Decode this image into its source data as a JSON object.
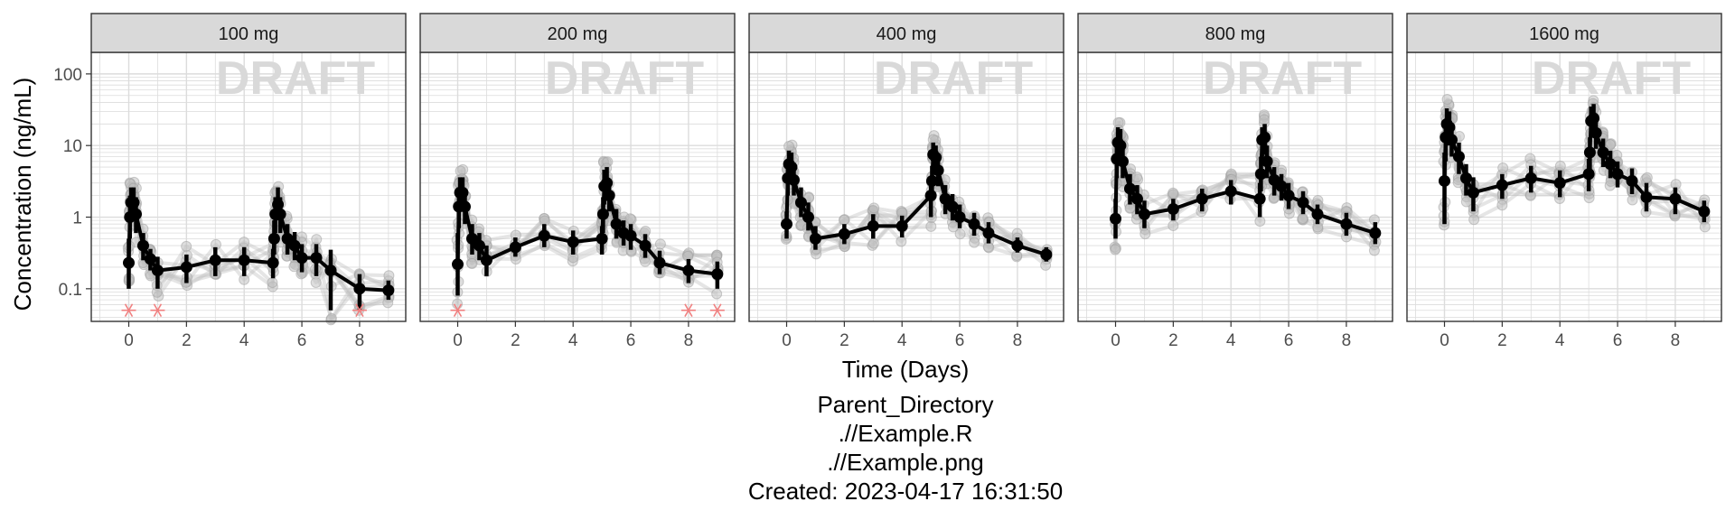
{
  "chart_data": {
    "type": "line",
    "facets": [
      "100 mg",
      "200 mg",
      "400 mg",
      "800 mg",
      "1600 mg"
    ],
    "xlabel": "Time (Days)",
    "ylabel": "Concentration (ng/mL)",
    "x_ticks": [
      "0",
      "2",
      "4",
      "6",
      "8"
    ],
    "y_ticks": [
      "0.1",
      "1",
      "10",
      "100"
    ],
    "y_scale": "log10",
    "ylim": [
      0.035,
      200
    ],
    "xlim": [
      -1.3,
      9.6
    ],
    "watermark": "DRAFT",
    "grid": true,
    "caption": [
      "Parent_Directory",
      ".//Example.R",
      ".//Example.png",
      "Created: 2023-04-17 16:31:50"
    ],
    "colors": {
      "mean_line": "#000000",
      "individual": "#bdbdbd",
      "blq_marker": "#f08080",
      "strip_bg": "#d9d9d9",
      "grid": "#dcdcdc"
    },
    "series": [
      {
        "facet": "100 mg",
        "x": [
          0,
          0.04,
          0.08,
          0.17,
          0.25,
          0.5,
          0.75,
          1,
          2,
          3,
          4,
          5,
          5.04,
          5.08,
          5.17,
          5.25,
          5.5,
          5.75,
          6,
          6.5,
          7,
          8,
          9
        ],
        "mean": [
          0.23,
          1.0,
          1.6,
          1.6,
          1.1,
          0.4,
          0.26,
          0.18,
          0.2,
          0.25,
          0.25,
          0.23,
          0.5,
          1.1,
          1.5,
          1.1,
          0.5,
          0.4,
          0.27,
          0.27,
          0.18,
          0.1,
          0.095
        ],
        "lower": [
          0.1,
          0.5,
          0.9,
          0.9,
          0.6,
          0.25,
          0.18,
          0.1,
          0.12,
          0.15,
          0.15,
          0.14,
          0.3,
          0.6,
          0.9,
          0.6,
          0.3,
          0.25,
          0.17,
          0.15,
          0.05,
          0.05,
          0.07
        ],
        "upper": [
          0.5,
          2.0,
          2.6,
          2.6,
          1.9,
          0.6,
          0.36,
          0.28,
          0.3,
          0.38,
          0.38,
          0.36,
          0.9,
          1.9,
          2.6,
          1.9,
          0.8,
          0.62,
          0.42,
          0.42,
          0.35,
          0.16,
          0.13
        ],
        "blq_x": [
          0,
          1,
          8
        ]
      },
      {
        "facet": "200 mg",
        "x": [
          0,
          0.04,
          0.08,
          0.17,
          0.25,
          0.5,
          0.75,
          1,
          2,
          3,
          4,
          5,
          5.04,
          5.08,
          5.17,
          5.25,
          5.5,
          5.75,
          6,
          6.5,
          7,
          8,
          9
        ],
        "mean": [
          0.22,
          1.4,
          2.2,
          2.2,
          1.4,
          0.5,
          0.4,
          0.25,
          0.38,
          0.55,
          0.45,
          0.5,
          1.1,
          2.7,
          3.0,
          2.0,
          0.8,
          0.6,
          0.55,
          0.4,
          0.23,
          0.18,
          0.16
        ],
        "lower": [
          0.08,
          0.7,
          1.3,
          1.3,
          0.8,
          0.3,
          0.25,
          0.15,
          0.28,
          0.38,
          0.3,
          0.3,
          0.6,
          1.5,
          1.7,
          1.2,
          0.5,
          0.4,
          0.35,
          0.27,
          0.16,
          0.12,
          0.1
        ],
        "upper": [
          0.6,
          2.6,
          3.6,
          3.6,
          2.4,
          0.8,
          0.6,
          0.4,
          0.52,
          0.8,
          0.65,
          0.75,
          1.9,
          4.6,
          5.0,
          3.4,
          1.3,
          0.9,
          0.8,
          0.58,
          0.34,
          0.26,
          0.24
        ],
        "blq_x": [
          0,
          8,
          9
        ]
      },
      {
        "facet": "400 mg",
        "x": [
          0,
          0.04,
          0.08,
          0.17,
          0.25,
          0.5,
          0.75,
          1,
          2,
          3,
          4,
          5,
          5.04,
          5.08,
          5.17,
          5.25,
          5.5,
          5.75,
          6,
          6.5,
          7,
          8,
          9
        ],
        "mean": [
          0.8,
          3.5,
          5.5,
          5.0,
          3.3,
          1.6,
          1.0,
          0.5,
          0.58,
          0.75,
          0.75,
          2.0,
          3.2,
          7.5,
          6.8,
          4.5,
          1.8,
          1.4,
          1.0,
          0.8,
          0.6,
          0.4,
          0.3
        ],
        "lower": [
          0.5,
          2.0,
          3.3,
          3.0,
          2.0,
          1.0,
          0.65,
          0.35,
          0.42,
          0.5,
          0.52,
          1.0,
          2.0,
          4.5,
          4.0,
          2.7,
          1.1,
          0.9,
          0.7,
          0.55,
          0.43,
          0.32,
          0.24
        ],
        "upper": [
          1.2,
          6.0,
          8.5,
          8.0,
          5.5,
          2.6,
          1.6,
          0.75,
          0.8,
          1.1,
          1.05,
          3.2,
          5.2,
          11.0,
          10.0,
          7.0,
          2.8,
          2.1,
          1.5,
          1.15,
          0.85,
          0.52,
          0.38
        ],
        "blq_x": []
      },
      {
        "facet": "800 mg",
        "x": [
          0,
          0.04,
          0.08,
          0.17,
          0.25,
          0.5,
          0.75,
          1,
          2,
          3,
          4,
          5,
          5.04,
          5.08,
          5.17,
          5.25,
          5.5,
          5.75,
          6,
          6.5,
          7,
          8,
          9
        ],
        "mean": [
          0.95,
          6.5,
          11.0,
          10.0,
          6.0,
          2.5,
          1.8,
          1.1,
          1.3,
          1.8,
          2.3,
          1.8,
          4.0,
          12.0,
          13.0,
          6.0,
          3.3,
          2.7,
          2.0,
          1.6,
          1.1,
          0.8,
          0.6
        ],
        "lower": [
          0.5,
          3.5,
          6.0,
          5.5,
          3.5,
          1.5,
          1.1,
          0.7,
          0.9,
          1.2,
          1.5,
          1.0,
          2.3,
          7.0,
          7.5,
          3.5,
          2.0,
          1.7,
          1.3,
          1.1,
          0.8,
          0.55,
          0.42
        ],
        "upper": [
          1.8,
          11.0,
          18.0,
          17.0,
          10.0,
          4.0,
          2.8,
          1.7,
          1.8,
          2.5,
          3.3,
          3.0,
          7.0,
          18.0,
          20.0,
          10.0,
          5.0,
          4.0,
          3.0,
          2.3,
          1.5,
          1.15,
          0.85
        ],
        "blq_x": []
      },
      {
        "facet": "1600 mg",
        "x": [
          0,
          0.04,
          0.08,
          0.17,
          0.25,
          0.5,
          0.75,
          1,
          2,
          3,
          4,
          5,
          5.04,
          5.08,
          5.17,
          5.25,
          5.5,
          5.75,
          6,
          6.5,
          7,
          8,
          9
        ],
        "mean": [
          3.2,
          13.0,
          20.0,
          18.0,
          12.0,
          7.0,
          3.5,
          2.2,
          2.8,
          3.5,
          3.0,
          4.0,
          8.0,
          22.0,
          24.0,
          15.0,
          8.0,
          5.5,
          4.0,
          3.2,
          1.9,
          1.8,
          1.2
        ],
        "lower": [
          0.8,
          6.0,
          11.0,
          10.0,
          7.0,
          4.0,
          2.0,
          1.2,
          1.8,
          2.2,
          1.9,
          2.3,
          4.5,
          13.0,
          15.0,
          9.0,
          5.0,
          3.5,
          2.6,
          2.1,
          1.2,
          1.1,
          0.85
        ],
        "upper": [
          8.0,
          22.0,
          33.0,
          30.0,
          20.0,
          11.0,
          5.5,
          3.6,
          4.0,
          5.2,
          4.5,
          6.5,
          13.0,
          35.0,
          38.0,
          24.0,
          12.5,
          8.5,
          6.0,
          4.8,
          3.0,
          2.6,
          1.7
        ],
        "blq_x": []
      }
    ]
  }
}
